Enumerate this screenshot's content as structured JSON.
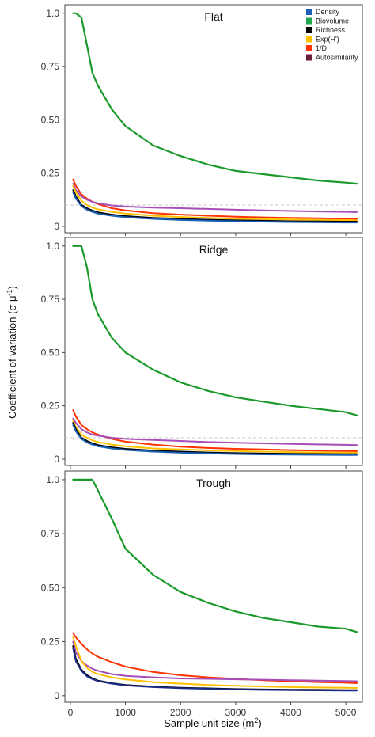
{
  "chart_data": {
    "type": "line",
    "xlabel": "Sample unit size (m",
    "xlabel_sup": "2",
    "xlabel_close": ")",
    "ylabel": "Coefficient of variation (σ μ",
    "ylabel_sup": "-1",
    "ylabel_close": ")",
    "xlim": [
      -100,
      5300
    ],
    "ylim": [
      -0.03,
      1.04
    ],
    "xticks": [
      0,
      1000,
      2000,
      3000,
      4000,
      5000
    ],
    "xtick_labels": [
      "0",
      "1000",
      "2000",
      "3000",
      "4000",
      "5000"
    ],
    "yticks": [
      0,
      0.25,
      0.5,
      0.75,
      1.0
    ],
    "ytick_labels": [
      "0",
      "0.25",
      "0.50",
      "0.75",
      "1.0"
    ],
    "reference_line": 0.1,
    "legend": {
      "placement": "top-right",
      "entries": [
        {
          "label": "Density",
          "color": "#1a5fb4"
        },
        {
          "label": "Biovolume",
          "color": "#1fa64a"
        },
        {
          "label": "Richness",
          "color": "#000000"
        },
        {
          "label": "Exp(H')",
          "color": "#ffc000"
        },
        {
          "label": "1/D",
          "color": "#ff3300"
        },
        {
          "label": "Autosimilarity",
          "color": "#6b1f3a"
        }
      ]
    },
    "x": [
      50,
      100,
      200,
      300,
      400,
      500,
      750,
      1000,
      1500,
      2000,
      2500,
      3000,
      3500,
      4000,
      4500,
      5000,
      5200
    ],
    "panels": [
      {
        "title": "Flat",
        "series": [
          {
            "name": "Biovolume",
            "color": "#1a9a2a",
            "width": 2.2,
            "values": [
              1.0,
              1.0,
              0.98,
              0.85,
              0.72,
              0.66,
              0.55,
              0.47,
              0.38,
              0.33,
              0.29,
              0.26,
              0.245,
              0.23,
              0.215,
              0.205,
              0.2
            ]
          },
          {
            "name": "1/D",
            "color": "#ff3300",
            "width": 2.0,
            "values": [
              0.22,
              0.19,
              0.15,
              0.13,
              0.115,
              0.105,
              0.085,
              0.075,
              0.062,
              0.055,
              0.05,
              0.045,
              0.042,
              0.04,
              0.038,
              0.036,
              0.035
            ]
          },
          {
            "name": "Autosimilarity",
            "color": "#a64db8",
            "width": 2.0,
            "values": [
              0.2,
              0.17,
              0.14,
              0.125,
              0.115,
              0.108,
              0.098,
              0.093,
              0.088,
              0.085,
              0.082,
              0.078,
              0.075,
              0.072,
              0.07,
              0.068,
              0.067
            ]
          },
          {
            "name": "Exp(H')",
            "color": "#ffc000",
            "width": 2.0,
            "values": [
              0.19,
              0.16,
              0.12,
              0.1,
              0.088,
              0.08,
              0.068,
              0.06,
              0.05,
              0.044,
              0.04,
              0.036,
              0.034,
              0.032,
              0.03,
              0.029,
              0.028
            ]
          },
          {
            "name": "Richness",
            "color": "#000000",
            "width": 2.0,
            "values": [
              0.17,
              0.14,
              0.1,
              0.085,
              0.074,
              0.066,
              0.055,
              0.048,
              0.04,
              0.035,
              0.031,
              0.028,
              0.026,
              0.024,
              0.023,
              0.022,
              0.022
            ]
          },
          {
            "name": "Density",
            "color": "#1a5fb4",
            "width": 2.0,
            "values": [
              0.16,
              0.13,
              0.095,
              0.078,
              0.068,
              0.06,
              0.05,
              0.043,
              0.035,
              0.03,
              0.027,
              0.024,
              0.022,
              0.02,
              0.019,
              0.018,
              0.018
            ]
          }
        ]
      },
      {
        "title": "Ridge",
        "series": [
          {
            "name": "Biovolume",
            "color": "#1a9a2a",
            "width": 2.2,
            "values": [
              1.0,
              1.0,
              1.0,
              0.9,
              0.75,
              0.68,
              0.57,
              0.5,
              0.42,
              0.36,
              0.32,
              0.29,
              0.27,
              0.25,
              0.235,
              0.22,
              0.205
            ]
          },
          {
            "name": "1/D",
            "color": "#ff3300",
            "width": 2.0,
            "values": [
              0.23,
              0.2,
              0.16,
              0.14,
              0.125,
              0.115,
              0.095,
              0.082,
              0.068,
              0.058,
              0.052,
              0.048,
              0.045,
              0.042,
              0.04,
              0.038,
              0.037
            ]
          },
          {
            "name": "Autosimilarity",
            "color": "#a64db8",
            "width": 2.0,
            "values": [
              0.19,
              0.17,
              0.14,
              0.125,
              0.115,
              0.11,
              0.1,
              0.095,
              0.09,
              0.085,
              0.08,
              0.077,
              0.074,
              0.071,
              0.069,
              0.067,
              0.066
            ]
          },
          {
            "name": "Exp(H')",
            "color": "#ffc000",
            "width": 2.0,
            "values": [
              0.18,
              0.15,
              0.115,
              0.1,
              0.088,
              0.08,
              0.068,
              0.06,
              0.05,
              0.045,
              0.041,
              0.038,
              0.035,
              0.033,
              0.031,
              0.03,
              0.03
            ]
          },
          {
            "name": "Richness",
            "color": "#000000",
            "width": 2.0,
            "values": [
              0.17,
              0.14,
              0.1,
              0.085,
              0.074,
              0.066,
              0.055,
              0.048,
              0.04,
              0.035,
              0.031,
              0.028,
              0.026,
              0.025,
              0.024,
              0.023,
              0.023
            ]
          },
          {
            "name": "Density",
            "color": "#1a5fb4",
            "width": 2.0,
            "values": [
              0.16,
              0.13,
              0.095,
              0.078,
              0.068,
              0.06,
              0.05,
              0.043,
              0.035,
              0.03,
              0.027,
              0.024,
              0.022,
              0.021,
              0.02,
              0.019,
              0.019
            ]
          }
        ]
      },
      {
        "title": "Trough",
        "series": [
          {
            "name": "Biovolume",
            "color": "#1a9a2a",
            "width": 2.2,
            "values": [
              1.0,
              1.0,
              1.0,
              1.0,
              1.0,
              0.95,
              0.82,
              0.68,
              0.56,
              0.48,
              0.43,
              0.39,
              0.36,
              0.34,
              0.32,
              0.31,
              0.295
            ]
          },
          {
            "name": "1/D",
            "color": "#ff3300",
            "width": 2.0,
            "values": [
              0.29,
              0.27,
              0.24,
              0.215,
              0.195,
              0.18,
              0.155,
              0.135,
              0.11,
              0.095,
              0.085,
              0.078,
              0.072,
              0.067,
              0.063,
              0.06,
              0.058
            ]
          },
          {
            "name": "Autosimilarity",
            "color": "#a64db8",
            "width": 2.0,
            "values": [
              0.25,
              0.2,
              0.16,
              0.14,
              0.125,
              0.115,
              0.1,
              0.092,
              0.085,
              0.08,
              0.078,
              0.076,
              0.074,
              0.072,
              0.07,
              0.068,
              0.067
            ]
          },
          {
            "name": "Exp(H')",
            "color": "#ffc000",
            "width": 2.0,
            "values": [
              0.27,
              0.23,
              0.16,
              0.13,
              0.11,
              0.1,
              0.085,
              0.075,
              0.063,
              0.056,
              0.05,
              0.046,
              0.043,
              0.04,
              0.038,
              0.037,
              0.036
            ]
          },
          {
            "name": "Richness",
            "color": "#000000",
            "width": 2.0,
            "values": [
              0.23,
              0.17,
              0.12,
              0.095,
              0.08,
              0.07,
              0.058,
              0.05,
              0.042,
              0.037,
              0.034,
              0.031,
              0.029,
              0.028,
              0.027,
              0.026,
              0.026
            ]
          },
          {
            "name": "Density",
            "color": "#1a2a8a",
            "width": 2.0,
            "values": [
              0.22,
              0.16,
              0.115,
              0.09,
              0.077,
              0.068,
              0.056,
              0.048,
              0.04,
              0.035,
              0.032,
              0.029,
              0.027,
              0.026,
              0.025,
              0.024,
              0.024
            ]
          }
        ]
      }
    ]
  }
}
